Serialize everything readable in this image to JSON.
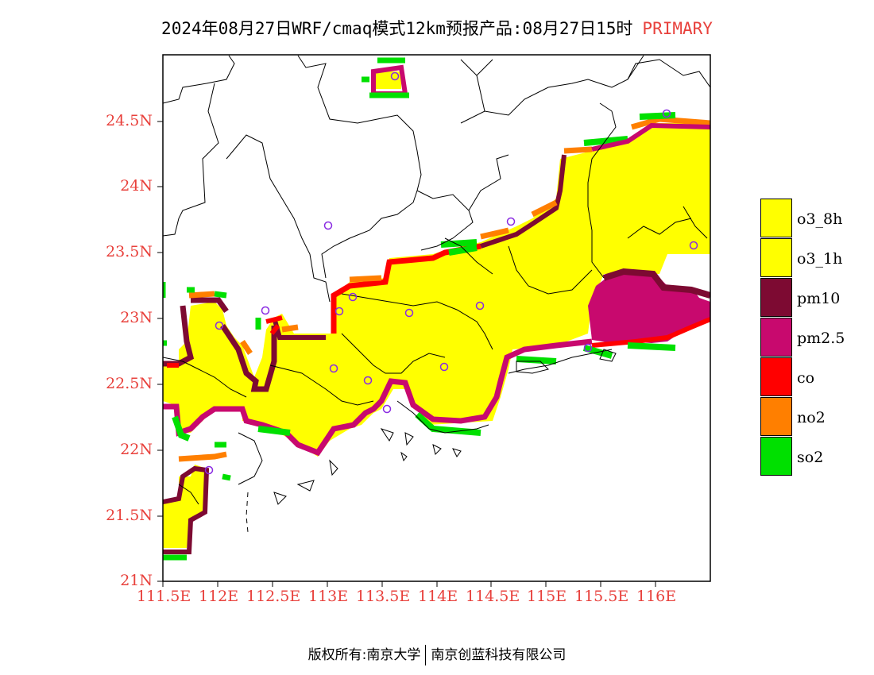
{
  "title": {
    "main": "2024年08月27日WRF/cmaq模式12km预报产品:08月27日15时",
    "tag": "PRIMARY"
  },
  "colors": {
    "o3_8h": "#ffff00",
    "o3_1h": "#ffff00",
    "pm10": "#7d0a32",
    "pm2_5": "#c8096e",
    "co": "#ff0000",
    "no2": "#ff7f00",
    "so2": "#00e000",
    "tick": "#e8413c",
    "station": "#8a2be2"
  },
  "axes": {
    "lat_ticks": [
      "21N",
      "21.5N",
      "22N",
      "22.5N",
      "23N",
      "23.5N",
      "24N",
      "24.5N"
    ],
    "lon_ticks": [
      "111.5E",
      "112E",
      "112.5E",
      "113E",
      "113.5E",
      "114E",
      "114.5E",
      "115E",
      "115.5E",
      "116E"
    ],
    "lat_range": [
      21.0,
      25.0
    ],
    "lon_range": [
      111.5,
      116.5
    ]
  },
  "legend": [
    {
      "key": "o3_8h",
      "label": "o3_8h",
      "color": "#ffff00"
    },
    {
      "key": "o3_1h",
      "label": "o3_1h",
      "color": "#ffff00"
    },
    {
      "key": "pm10",
      "label": "pm10",
      "color": "#7d0a32"
    },
    {
      "key": "pm2_5",
      "label": "pm2.5",
      "color": "#c8096e"
    },
    {
      "key": "co",
      "label": "co",
      "color": "#ff0000"
    },
    {
      "key": "no2",
      "label": "no2",
      "color": "#ff7f00"
    },
    {
      "key": "so2",
      "label": "so2",
      "color": "#00e000"
    }
  ],
  "footer": {
    "left": "版权所有:南京大学",
    "right": "南京创蓝科技有限公司"
  }
}
